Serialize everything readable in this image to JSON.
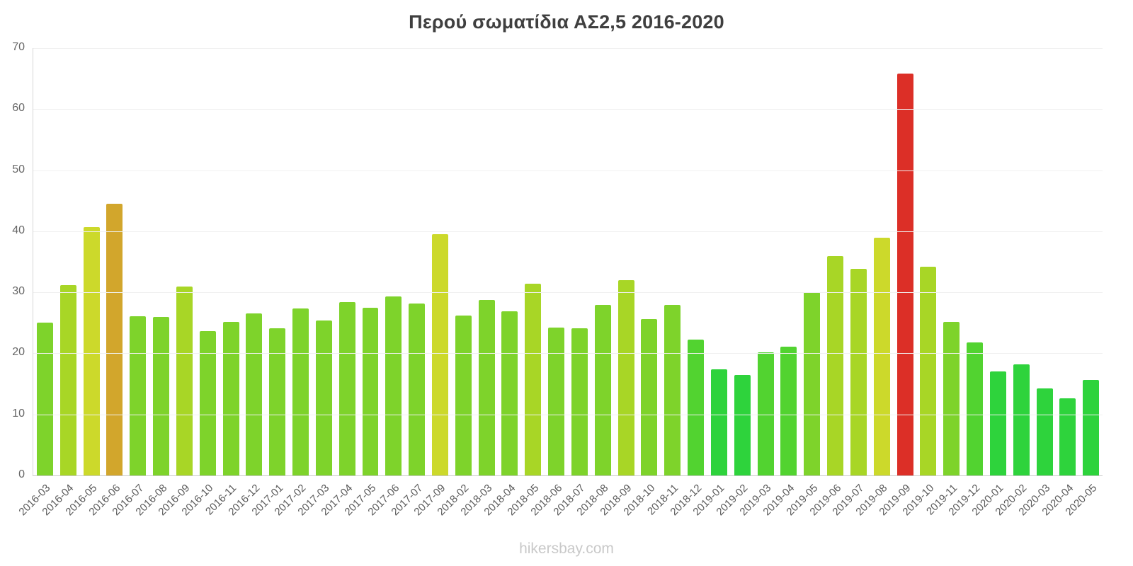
{
  "page": {
    "watermark": "hikersbay.com"
  },
  "chart_data": {
    "type": "bar",
    "title": "Περού σωματίδια ΑΣ2,5 2016-2020",
    "xlabel": "",
    "ylabel": "",
    "ylim": [
      0,
      70
    ],
    "yticks": [
      0,
      10,
      20,
      30,
      40,
      50,
      60,
      70
    ],
    "grid": true,
    "legend": false,
    "categories": [
      "2016-03",
      "2016-04",
      "2016-05",
      "2016-06",
      "2016-07",
      "2016-08",
      "2016-09",
      "2016-10",
      "2016-11",
      "2016-12",
      "2017-01",
      "2017-02",
      "2017-03",
      "2017-04",
      "2017-05",
      "2017-06",
      "2017-07",
      "2017-09",
      "2018-02",
      "2018-03",
      "2018-04",
      "2018-05",
      "2018-06",
      "2018-07",
      "2018-08",
      "2018-09",
      "2018-10",
      "2018-11",
      "2018-12",
      "2019-01",
      "2019-02",
      "2019-03",
      "2019-04",
      "2019-05",
      "2019-06",
      "2019-07",
      "2019-08",
      "2019-09",
      "2019-10",
      "2019-11",
      "2019-12",
      "2020-01",
      "2020-02",
      "2020-03",
      "2020-04",
      "2020-05"
    ],
    "values": [
      25.0,
      31.2,
      40.7,
      44.5,
      26.1,
      26.0,
      31.0,
      23.7,
      25.2,
      26.5,
      24.1,
      27.3,
      25.4,
      28.4,
      27.5,
      29.3,
      28.2,
      39.5,
      26.2,
      28.8,
      26.9,
      31.4,
      24.2,
      24.1,
      27.9,
      32.0,
      25.6,
      27.9,
      22.3,
      17.4,
      16.5,
      20.2,
      21.1,
      30.0,
      35.9,
      33.8,
      39.0,
      65.8,
      34.2,
      25.1,
      21.8,
      17.0,
      18.2,
      14.2,
      12.6,
      15.6
    ],
    "colors": {
      "value_thresholds": [
        {
          "min": 60,
          "color": "#dc2f27"
        },
        {
          "min": 42,
          "color": "#d2a62c"
        },
        {
          "min": 37,
          "color": "#ccd92b"
        },
        {
          "min": 30.5,
          "color": "#a8d626"
        },
        {
          "min": 23,
          "color": "#7ed32b"
        },
        {
          "min": 19,
          "color": "#52d330"
        },
        {
          "min": 0,
          "color": "#2ed33c"
        }
      ],
      "grid_color": "#f0f0f0",
      "axis_color": "#c9c9c9",
      "title_color": "#3f3f3f",
      "tick_color": "#595959",
      "watermark_color": "#c9c9c9"
    }
  }
}
